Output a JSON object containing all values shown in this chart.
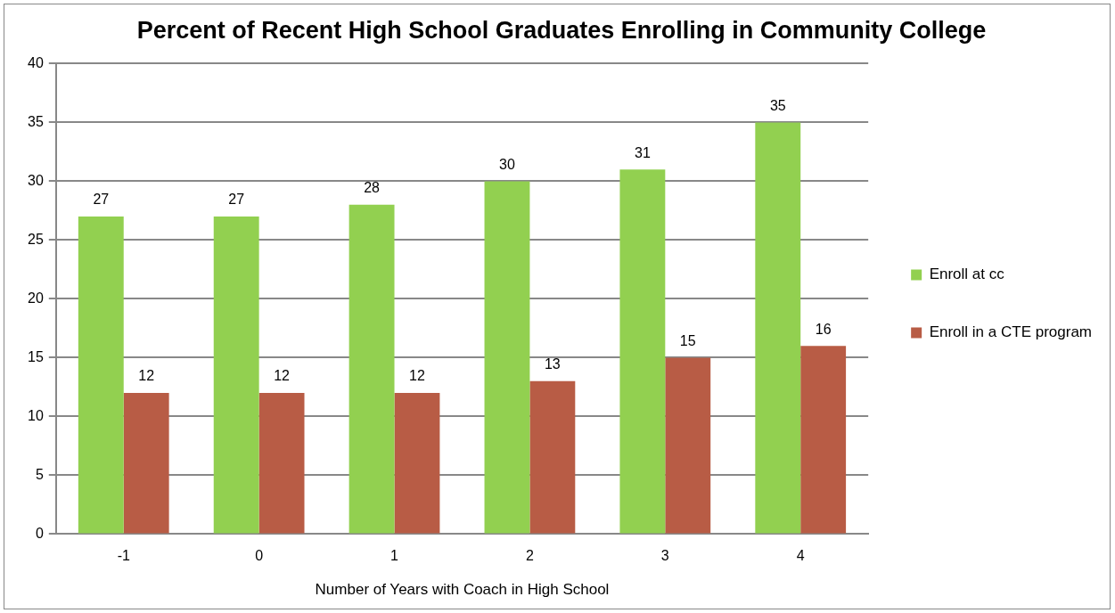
{
  "chart_data": {
    "type": "bar",
    "title": "Percent of Recent High School Graduates Enrolling in Community College",
    "xlabel": "Number of Years with Coach in High School",
    "categories": [
      "-1",
      "0",
      "1",
      "2",
      "3",
      "4"
    ],
    "series": [
      {
        "name": "Enroll at cc",
        "color": "#92d050",
        "values": [
          27,
          27,
          28,
          30,
          31,
          35
        ]
      },
      {
        "name": "Enroll in a CTE program",
        "color": "#b85c45",
        "values": [
          12,
          12,
          12,
          13,
          15,
          16
        ]
      }
    ],
    "ylim": [
      0,
      40
    ],
    "yticks": [
      0,
      5,
      10,
      15,
      20,
      25,
      30,
      35,
      40
    ],
    "grid": "y",
    "legend": "right",
    "data_labels": true
  }
}
